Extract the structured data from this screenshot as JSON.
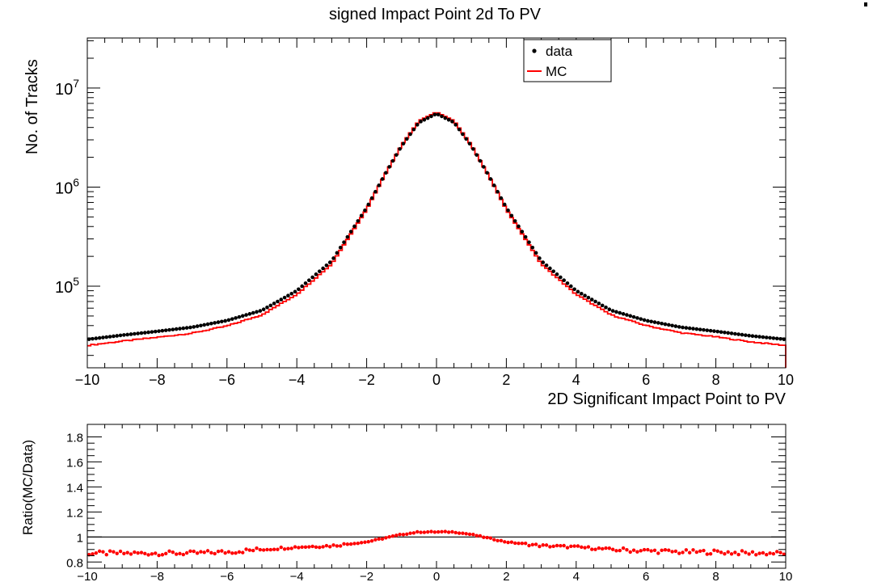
{
  "colors": {
    "data": "#000000",
    "mc": "#ff0000",
    "frame": "#000000",
    "background": "#ffffff"
  },
  "chart_data": [
    {
      "type": "line",
      "title": "signed Impact Point 2d To PV",
      "xlabel": "2D Significant Impact Point to PV",
      "ylabel": "No. of Tracks",
      "xlim": [
        -10,
        10
      ],
      "ylim": [
        15000,
        32000000
      ],
      "yscale": "log",
      "x_ticks": [
        "−10",
        "−8",
        "−6",
        "−4",
        "−2",
        "0",
        "2",
        "4",
        "6",
        "8",
        "10"
      ],
      "x_tick_values": [
        -10,
        -8,
        -6,
        -4,
        -2,
        0,
        2,
        4,
        6,
        8,
        10
      ],
      "y_ticks": [
        {
          "base": "10",
          "exp": "5",
          "value": 100000
        },
        {
          "base": "10",
          "exp": "6",
          "value": 1000000
        },
        {
          "base": "10",
          "exp": "7",
          "value": 10000000
        }
      ],
      "legend": {
        "position": "top-right",
        "entries": [
          {
            "label": "data",
            "style": "marker"
          },
          {
            "label": "MC",
            "style": "line"
          }
        ]
      },
      "grid": false,
      "model": {
        "note_series": "data: points, MC: step histogram",
        "x": [
          -10,
          -9,
          -8,
          -7,
          -6,
          -5,
          -4,
          -3,
          -2,
          -1.5,
          -1,
          -0.5,
          0,
          0.5,
          1,
          1.5,
          2,
          3,
          4,
          5,
          6,
          7,
          8,
          9,
          10
        ],
        "data": [
          29000,
          32000,
          35000,
          38500,
          45000,
          57000,
          90000,
          180000,
          620000,
          1300000,
          2600000,
          4500000,
          5500000,
          4500000,
          2600000,
          1300000,
          620000,
          180000,
          90000,
          57000,
          45000,
          38500,
          35000,
          31500,
          29000
        ],
        "ratio": [
          0.87,
          0.87,
          0.87,
          0.87,
          0.88,
          0.9,
          0.92,
          0.93,
          0.96,
          0.99,
          1.02,
          1.04,
          1.04,
          1.04,
          1.02,
          0.99,
          0.96,
          0.93,
          0.92,
          0.9,
          0.89,
          0.88,
          0.88,
          0.87,
          0.87
        ]
      },
      "series": [
        {
          "name": "data"
        },
        {
          "name": "MC"
        }
      ]
    },
    {
      "type": "scatter",
      "ylabel": "Ratio(MC/Data)",
      "xlim": [
        -10,
        10
      ],
      "ylim": [
        0.75,
        1.9
      ],
      "x_ticks": [
        "−10",
        "−8",
        "−6",
        "−4",
        "−2",
        "0",
        "2",
        "4",
        "6",
        "8",
        "10"
      ],
      "x_tick_values": [
        -10,
        -8,
        -6,
        -4,
        -2,
        0,
        2,
        4,
        6,
        8,
        10
      ],
      "y_ticks": [
        "0.8",
        "1",
        "1.2",
        "1.4",
        "1.6",
        "1.8"
      ],
      "y_tick_values": [
        0.8,
        1.0,
        1.2,
        1.4,
        1.6,
        1.8
      ],
      "reference_line": 1.0,
      "series": [
        {
          "name": "MC/Data"
        }
      ]
    }
  ]
}
